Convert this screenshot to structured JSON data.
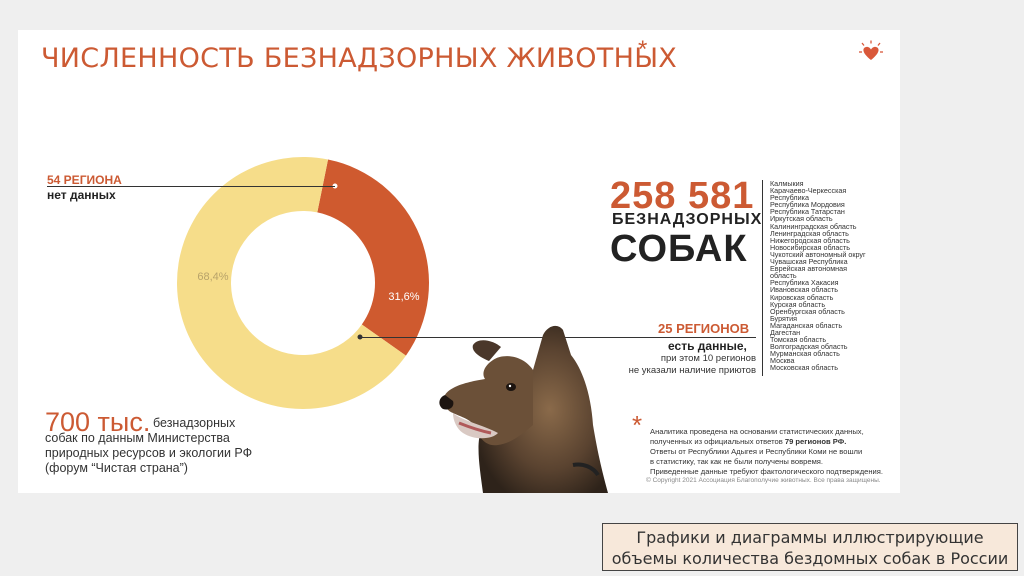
{
  "title": "ЧИСЛЕННОСТЬ БЕЗНАДЗОРНЫХ ЖИВОТНЫХ",
  "title_star": "*",
  "chart_data": {
    "type": "pie",
    "donut": true,
    "categories": [
      "54 РЕГИОНА нет данных",
      "25 РЕГИОНОВ есть данные"
    ],
    "values": [
      68.4,
      31.6
    ],
    "labels": [
      "68,4%",
      "31,6%"
    ],
    "colors": [
      "#f6dd8a",
      "#cf5a2f"
    ]
  },
  "callout_54": {
    "line1": "54 РЕГИОНА",
    "line2": "нет данных"
  },
  "stat_700": {
    "number": "700 тыс.",
    "line1": "безнадзорных",
    "line2": "собак по данным Министерства",
    "line3": "природных ресурсов и экологии РФ",
    "line4": "(форум “Чистая страна”)"
  },
  "main_stat": {
    "number": "258 581",
    "line1": "БЕЗНАДЗОРНЫХ",
    "line2": "СОБАК"
  },
  "regions": [
    "Калмыкия",
    "Карачаево-Черкесская",
    "Республика",
    "Республика Мордовия",
    "Республика Татарстан",
    "Иркутская область",
    "Калининградская область",
    "Ленинградская область",
    "Нижегородская область",
    "Новосибирская область",
    "Чукотский автономный округ",
    "Чувашская Республика",
    "Еврейская автономная",
    "область",
    "Республика Хакасия",
    "Ивановская область",
    "Кировская область",
    "Курская область",
    "Оренбургская область",
    "Бурятия",
    "Магаданская область",
    "Дагестан",
    "Томская область",
    "Волгоградская область",
    "Мурманская область",
    "Москва",
    "Московская область"
  ],
  "callout_25": {
    "line1": "25 РЕГИОНОВ",
    "line2": "есть данные,",
    "line3": "при этом 10 регионов",
    "line4": "не указали наличие приютов"
  },
  "note": {
    "star": "*",
    "line1": "Аналитика проведена на основании статистических данных,",
    "line2_a": "полученных из официальных ответов ",
    "line2_b": "79 регионов РФ.",
    "line3": "Ответы от Республики Адыгея и Республики Коми не вошли",
    "line4": "в статистику, так как не были получены вовремя.",
    "line5": "Приведенные данные требуют фактологического подтверждения."
  },
  "copyright": "© Copyright 2021 Ассоциация Благополучие животных. Все права защищены.",
  "caption": {
    "line1": "Графики и диаграммы иллюстрирующие",
    "line2": "объемы количества бездомных собак в России"
  },
  "colors": {
    "accent": "#cc5a33",
    "yellow": "#f6dd8a"
  }
}
